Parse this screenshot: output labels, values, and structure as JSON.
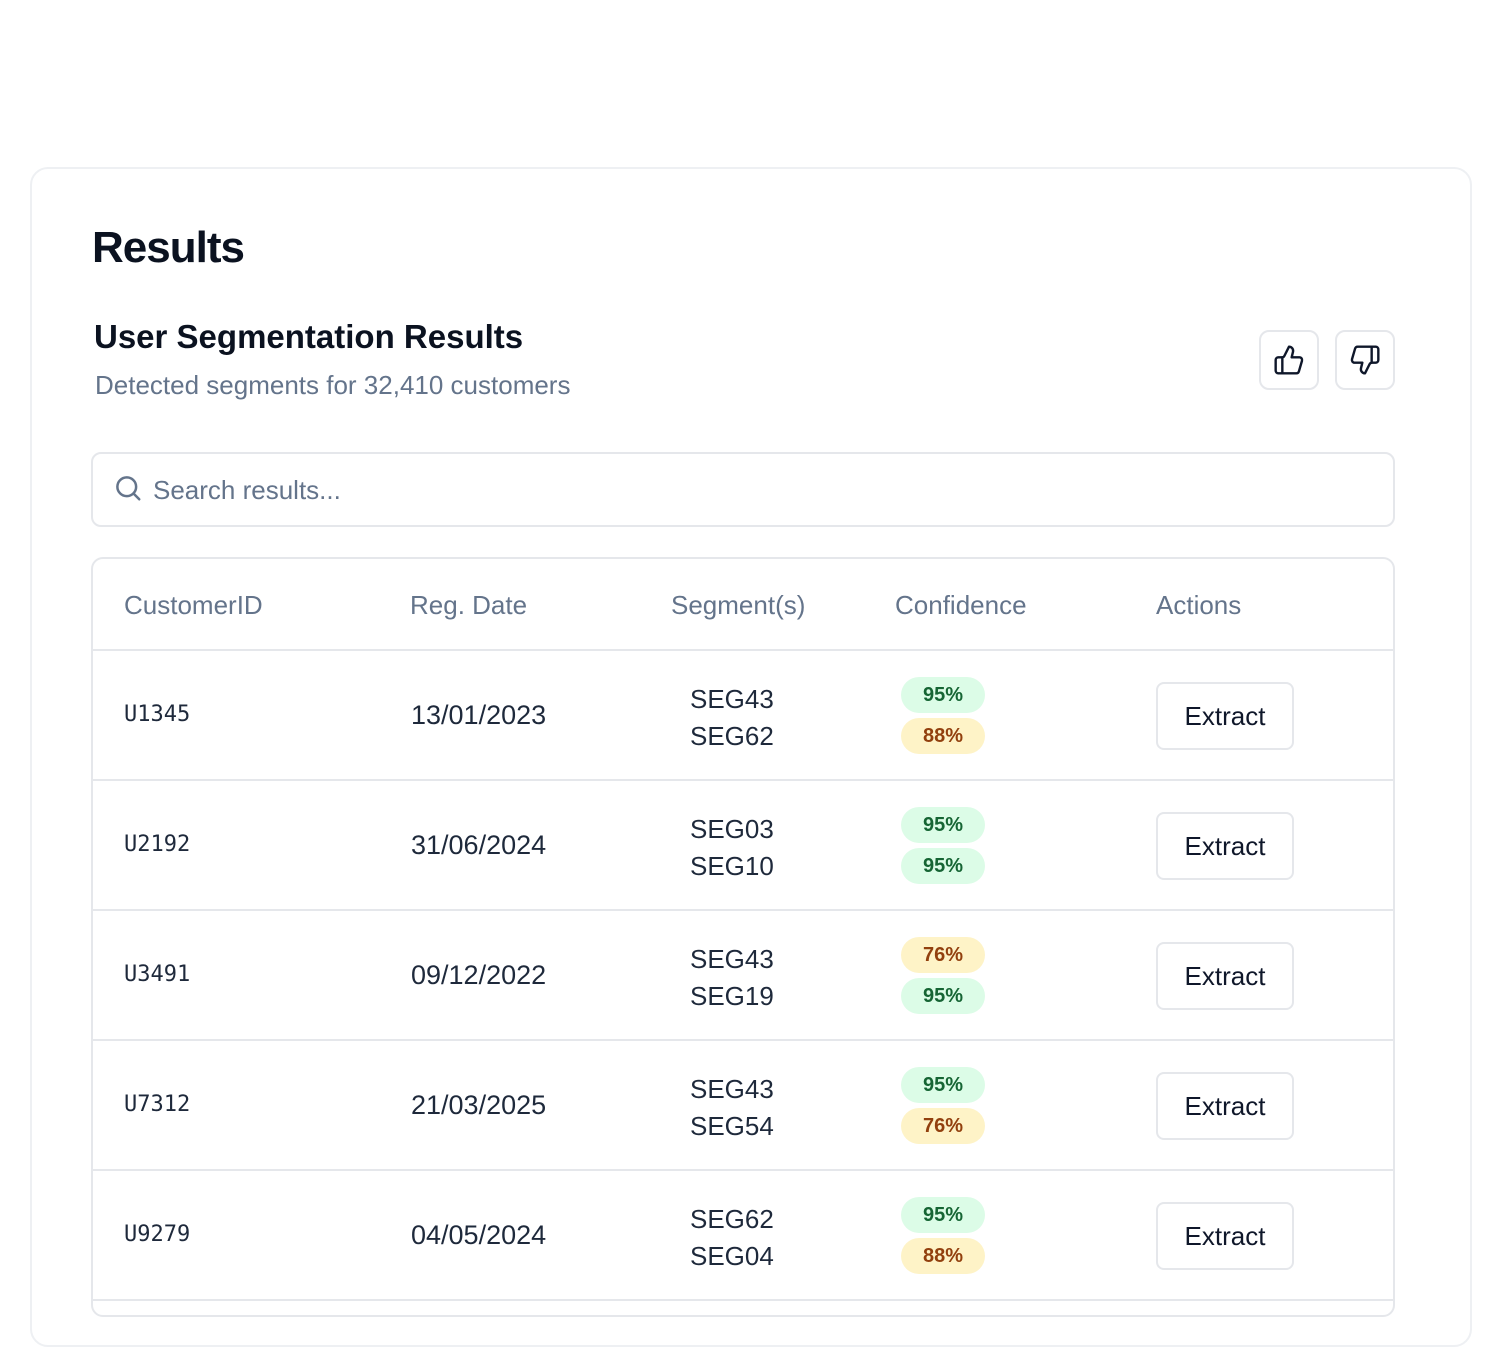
{
  "page": {
    "title": "Results"
  },
  "section": {
    "title": "User Segmentation Results",
    "subtitle": "Detected segments for 32,410 customers"
  },
  "feedback": {
    "up_icon": "thumbs-up-icon",
    "down_icon": "thumbs-down-icon"
  },
  "search": {
    "icon": "search-icon",
    "placeholder": "Search results...",
    "value": ""
  },
  "table": {
    "columns": {
      "customer_id": "CustomerID",
      "reg_date": "Reg. Date",
      "segments": "Segment(s)",
      "confidence": "Confidence",
      "actions": "Actions"
    },
    "rows": [
      {
        "customer_id": "U1345",
        "reg_date": "13/01/2023",
        "segments": [
          "SEG43",
          "SEG62"
        ],
        "confidence": [
          {
            "label": "95%",
            "value": 95,
            "level": "high"
          },
          {
            "label": "88%",
            "value": 88,
            "level": "mid"
          }
        ],
        "action": "Extract"
      },
      {
        "customer_id": "U2192",
        "reg_date": "31/06/2024",
        "segments": [
          "SEG03",
          "SEG10"
        ],
        "confidence": [
          {
            "label": "95%",
            "value": 95,
            "level": "high"
          },
          {
            "label": "95%",
            "value": 95,
            "level": "high"
          }
        ],
        "action": "Extract"
      },
      {
        "customer_id": "U3491",
        "reg_date": "09/12/2022",
        "segments": [
          "SEG43",
          "SEG19"
        ],
        "confidence": [
          {
            "label": "76%",
            "value": 76,
            "level": "mid"
          },
          {
            "label": "95%",
            "value": 95,
            "level": "high"
          }
        ],
        "action": "Extract"
      },
      {
        "customer_id": "U7312",
        "reg_date": "21/03/2025",
        "segments": [
          "SEG43",
          "SEG54"
        ],
        "confidence": [
          {
            "label": "95%",
            "value": 95,
            "level": "high"
          },
          {
            "label": "76%",
            "value": 76,
            "level": "mid"
          }
        ],
        "action": "Extract"
      },
      {
        "customer_id": "U9279",
        "reg_date": "04/05/2024",
        "segments": [
          "SEG62",
          "SEG04"
        ],
        "confidence": [
          {
            "label": "95%",
            "value": 95,
            "level": "high"
          },
          {
            "label": "88%",
            "value": 88,
            "level": "mid"
          }
        ],
        "action": "Extract"
      }
    ]
  },
  "colors": {
    "text_primary": "#0f172a",
    "text_muted": "#64748b",
    "border": "#e5e7eb",
    "badge_high_bg": "#dcfce7",
    "badge_high_text": "#166534",
    "badge_mid_bg": "#fef3c7",
    "badge_mid_text": "#92400e"
  }
}
